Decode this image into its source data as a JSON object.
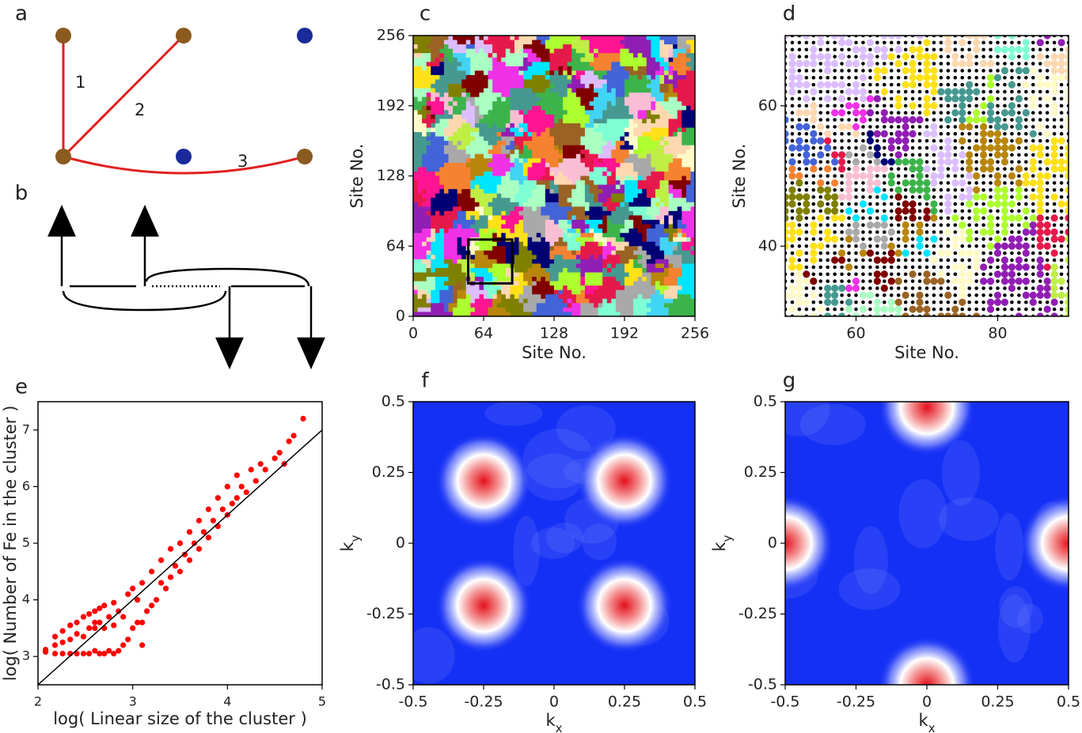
{
  "panels": [
    "a",
    "b",
    "c",
    "d",
    "e",
    "f",
    "g"
  ],
  "diagram_a": {
    "bond_labels": [
      "1",
      "2",
      "3"
    ]
  },
  "chart_data": [
    {
      "type": "cluster-map",
      "xlabel": "Site No.",
      "ylabel": "Site No.",
      "xlim": [
        0,
        256
      ],
      "ylim": [
        0,
        256
      ],
      "xticks": [
        0,
        64,
        128,
        192,
        256
      ],
      "yticks": [
        0,
        64,
        128,
        192,
        256
      ]
    },
    {
      "type": "site-lattice",
      "xlabel": "Site No.",
      "ylabel": "Site No.",
      "xlim": [
        50,
        90
      ],
      "ylim": [
        30,
        70
      ],
      "xticks": [
        60,
        80
      ],
      "yticks": [
        40,
        60
      ]
    },
    {
      "type": "scatter",
      "xlabel": "log( Linear size of the cluster )",
      "ylabel": "log( Number of Fe in the cluster )",
      "xlim": [
        2,
        5
      ],
      "ylim": [
        2.5,
        7.5
      ],
      "xticks": [
        2,
        3,
        4,
        5
      ],
      "yticks": [
        3,
        4,
        5,
        6,
        7
      ],
      "color": "#ff0000",
      "x": [
        2.08,
        2.08,
        2.18,
        2.18,
        2.18,
        2.26,
        2.26,
        2.26,
        2.34,
        2.34,
        2.34,
        2.41,
        2.41,
        2.41,
        2.48,
        2.48,
        2.48,
        2.54,
        2.54,
        2.54,
        2.6,
        2.6,
        2.6,
        2.65,
        2.65,
        2.65,
        2.7,
        2.7,
        2.7,
        2.75,
        2.75,
        2.8,
        2.8,
        2.8,
        2.85,
        2.85,
        2.9,
        2.9,
        2.95,
        2.95,
        3.0,
        3.0,
        3.05,
        3.05,
        3.1,
        3.1,
        3.15,
        3.2,
        3.2,
        3.25,
        3.3,
        3.3,
        3.35,
        3.4,
        3.4,
        3.45,
        3.5,
        3.5,
        3.55,
        3.6,
        3.6,
        3.65,
        3.7,
        3.7,
        3.75,
        3.8,
        3.8,
        3.85,
        3.9,
        3.9,
        3.95,
        4.0,
        4.0,
        4.05,
        4.1,
        4.1,
        4.15,
        4.2,
        4.25,
        4.3,
        4.35,
        4.4,
        4.5,
        4.55,
        4.6,
        4.65,
        4.7,
        4.8,
        3.1,
        2.6
      ],
      "y": [
        3.08,
        3.12,
        3.05,
        3.2,
        3.35,
        3.05,
        3.25,
        3.45,
        3.05,
        3.3,
        3.55,
        3.05,
        3.4,
        3.6,
        3.05,
        3.35,
        3.7,
        3.05,
        3.5,
        3.75,
        3.1,
        3.5,
        3.8,
        3.05,
        3.6,
        3.85,
        3.05,
        3.5,
        3.9,
        3.1,
        3.7,
        3.05,
        3.55,
        3.95,
        3.1,
        3.8,
        3.2,
        3.7,
        3.3,
        4.1,
        3.5,
        4.2,
        3.6,
        4.0,
        3.6,
        4.3,
        3.8,
        3.9,
        4.5,
        4.0,
        4.3,
        4.7,
        4.2,
        4.4,
        4.9,
        4.6,
        4.5,
        5.0,
        4.8,
        4.7,
        5.2,
        5.0,
        4.9,
        5.4,
        5.2,
        5.1,
        5.6,
        5.4,
        5.3,
        5.8,
        5.6,
        5.5,
        6.0,
        5.7,
        5.8,
        6.2,
        6.0,
        5.9,
        6.3,
        6.1,
        6.4,
        6.3,
        6.5,
        6.6,
        6.4,
        6.8,
        6.9,
        7.2,
        3.2,
        3.6
      ],
      "fit_line": {
        "x": [
          2,
          5
        ],
        "y": [
          2.5,
          7
        ]
      }
    },
    {
      "type": "contour",
      "xlabel": "k",
      "xlabel_subscript": "x",
      "ylabel": "k",
      "ylabel_subscript": "y",
      "xlim": [
        -0.5,
        0.5
      ],
      "ylim": [
        -0.5,
        0.5
      ],
      "xticks": [
        -0.5,
        -0.25,
        0,
        0.25,
        0.5
      ],
      "yticks": [
        -0.5,
        -0.25,
        0,
        0.25,
        0.5
      ],
      "peaks": {
        "x": [
          -0.25,
          0.25,
          -0.25,
          0.25
        ],
        "y": [
          0.22,
          0.22,
          -0.22,
          -0.22
        ]
      }
    },
    {
      "type": "contour",
      "xlabel": "k",
      "xlabel_subscript": "x",
      "ylabel": "k",
      "ylabel_subscript": "y",
      "xlim": [
        -0.5,
        0.5
      ],
      "ylim": [
        -0.5,
        0.5
      ],
      "xticks": [
        -0.5,
        -0.25,
        0,
        0.25,
        0.5
      ],
      "yticks": [
        -0.5,
        -0.25,
        0,
        0.25,
        0.5
      ],
      "peaks": {
        "x": [
          0,
          0,
          -0.5,
          0.5
        ],
        "y": [
          0.48,
          -0.5,
          0,
          0
        ]
      }
    }
  ]
}
